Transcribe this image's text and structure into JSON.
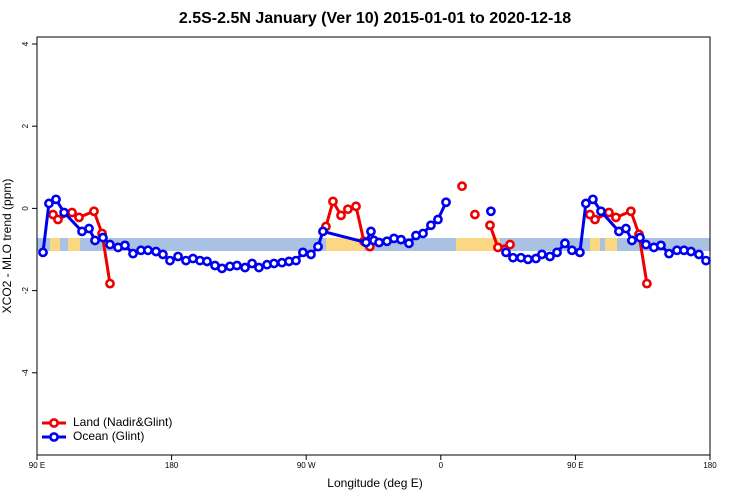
{
  "chart_data": {
    "type": "line",
    "title": "2.5S-2.5N January (Ver 10)   2015-01-01 to 2020-12-18",
    "xlabel": "Longitude (deg E)",
    "ylabel": "XCO2 - MLO trend (ppm)",
    "xlim": [
      90,
      540
    ],
    "ylim": [
      -6,
      4.17
    ],
    "xticks": [
      {
        "value": 90,
        "label": "90 E"
      },
      180,
      {
        "value": 270,
        "label": "90 W"
      },
      {
        "value": 360,
        "label": "0"
      },
      {
        "value": 450,
        "label": "90 E"
      },
      {
        "value": 540,
        "label": "180"
      }
    ],
    "yticks": [
      -4,
      -2,
      0,
      2,
      4
    ],
    "legend": "bottom-left",
    "series": [
      {
        "name": "Land (Nadir&Glint)",
        "color": "#ee0000",
        "x": [
          100.7,
          104.0,
          113.4,
          118.1,
          128.1,
          133.5,
          138.8,
          null,
          283.2,
          287.9,
          293.3,
          297.9,
          303.3,
          308.6,
          312.6,
          null,
          374.2,
          null,
          382.8,
          null,
          392.9,
          398.2,
          406.3,
          null,
          459.7,
          463.1,
          472.4,
          477.1,
          487.1,
          492.5,
          497.8
        ],
        "values": [
          -0.15,
          -0.27,
          -0.1,
          -0.22,
          -0.07,
          -0.61,
          -1.83,
          null,
          -0.44,
          0.17,
          -0.17,
          -0.02,
          0.05,
          -0.8,
          -0.93,
          null,
          0.54,
          null,
          -0.15,
          null,
          -0.41,
          -0.95,
          -0.88,
          null,
          -0.15,
          -0.27,
          -0.1,
          -0.22,
          -0.07,
          -0.63,
          -1.83
        ]
      },
      {
        "name": "Ocean (Glint)",
        "color": "#0000ee",
        "x": [
          94.0,
          98.0,
          102.7,
          108.1,
          120.1,
          124.8,
          128.8,
          134.1,
          138.8,
          144.2,
          148.8,
          154.2,
          159.5,
          164.2,
          169.6,
          174.2,
          178.9,
          184.3,
          189.6,
          194.3,
          199.0,
          203.7,
          209.0,
          213.7,
          219.0,
          223.7,
          229.1,
          233.8,
          238.4,
          243.8,
          248.5,
          253.8,
          258.5,
          263.2,
          267.8,
          273.2,
          277.9,
          281.2,
          310.0,
          313.3,
          315.3,
          318.7,
          324.0,
          328.7,
          333.4,
          338.7,
          343.4,
          348.1,
          353.4,
          358.1,
          363.5,
          null,
          393.5,
          null,
          403.6,
          408.3,
          413.6,
          418.3,
          423.6,
          427.6,
          433.0,
          437.7,
          443.0,
          447.7,
          453.0,
          457.0,
          461.7,
          467.1,
          479.1,
          483.8,
          487.8,
          493.2,
          497.2,
          502.5,
          507.2,
          512.6,
          517.9,
          522.6,
          527.3,
          532.6,
          537.3
        ],
        "values": [
          -1.07,
          0.12,
          0.22,
          -0.1,
          -0.56,
          -0.49,
          -0.78,
          -0.71,
          -0.88,
          -0.95,
          -0.9,
          -1.1,
          -1.02,
          -1.02,
          -1.05,
          -1.12,
          -1.27,
          -1.17,
          -1.27,
          -1.22,
          -1.27,
          -1.29,
          -1.39,
          -1.46,
          -1.41,
          -1.39,
          -1.44,
          -1.34,
          -1.44,
          -1.37,
          -1.34,
          -1.32,
          -1.29,
          -1.27,
          -1.07,
          -1.12,
          -0.93,
          -0.56,
          -0.83,
          -0.56,
          -0.78,
          -0.83,
          -0.8,
          -0.73,
          -0.76,
          -0.85,
          -0.66,
          -0.61,
          -0.41,
          -0.27,
          0.15,
          null,
          -0.07,
          null,
          -1.07,
          -1.2,
          -1.2,
          -1.24,
          -1.22,
          -1.12,
          -1.17,
          -1.07,
          -0.85,
          -1.02,
          -1.07,
          0.12,
          0.22,
          -0.07,
          -0.56,
          -0.49,
          -0.78,
          -0.71,
          -0.88,
          -0.95,
          -0.9,
          -1.1,
          -1.02,
          -1.02,
          -1.05,
          -1.12,
          -1.27
        ]
      }
    ]
  }
}
